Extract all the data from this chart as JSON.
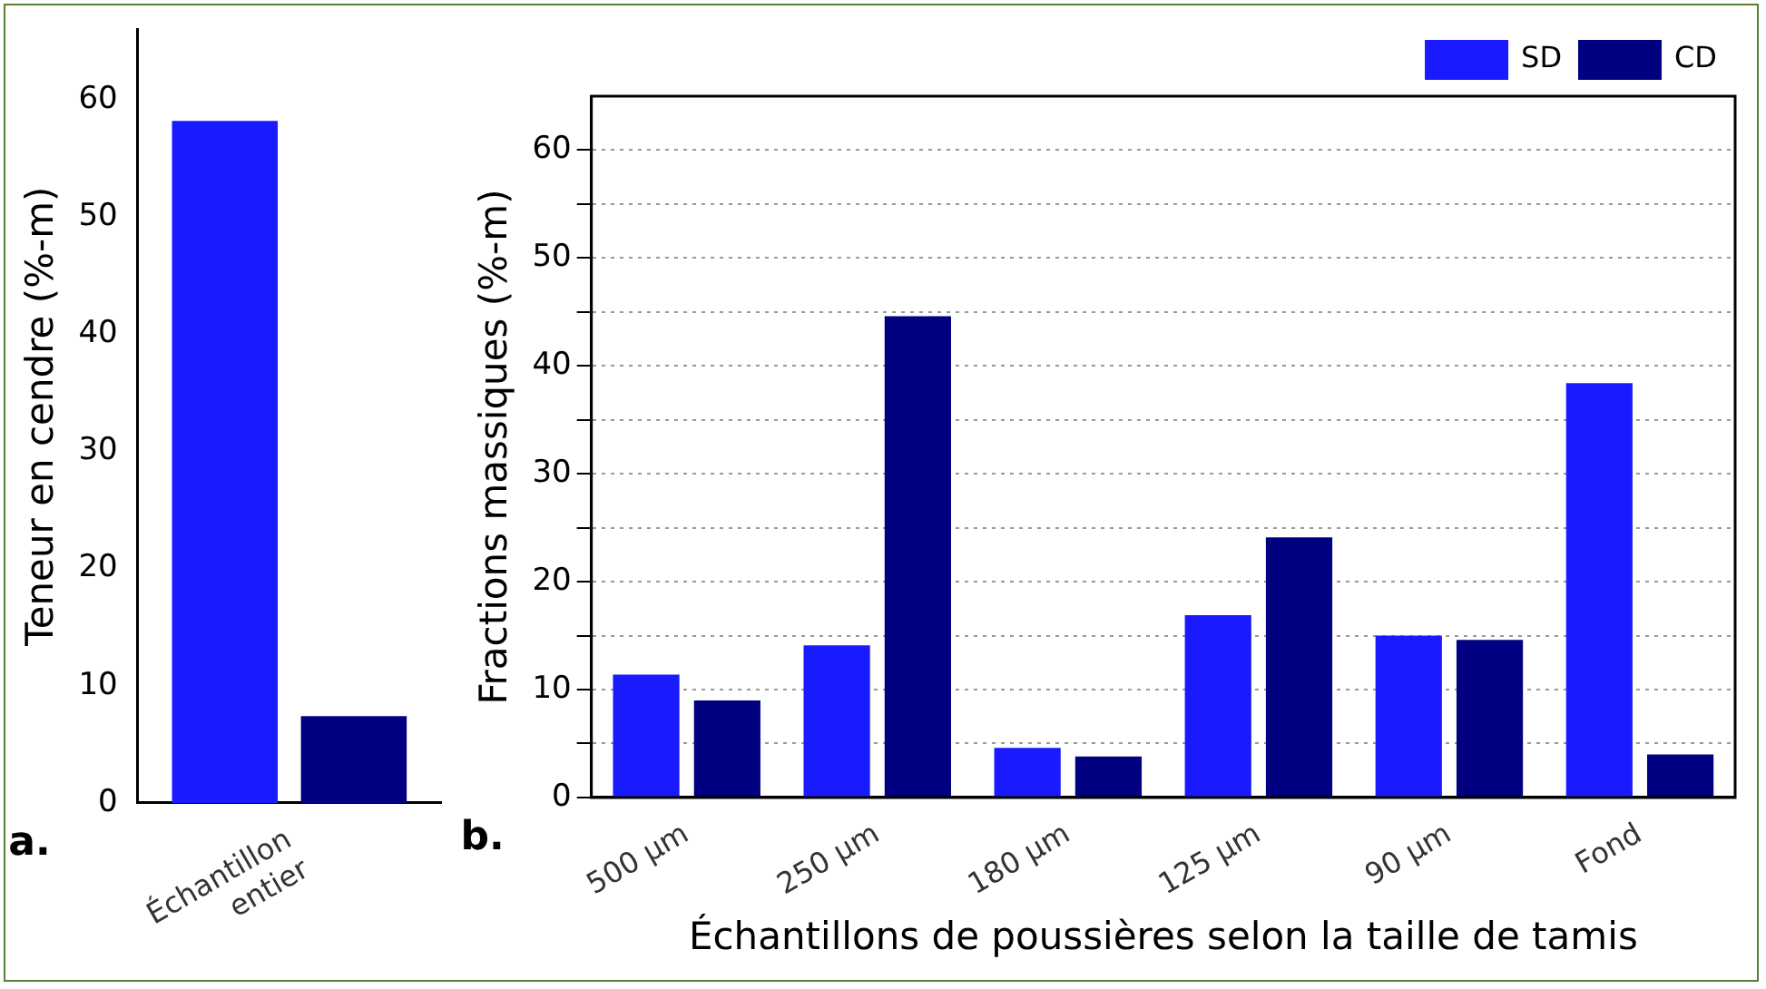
{
  "chart_data": [
    {
      "type": "bar",
      "categories": [
        "Échantillon entier"
      ],
      "ylabel": "Teneur en cendre (%-m)",
      "ylim": [
        0,
        66
      ],
      "yticks": [
        0,
        10,
        20,
        30,
        40,
        50,
        60
      ],
      "series": [
        {
          "color": "#1a1aff",
          "values": [
            58.2
          ]
        },
        {
          "color": "#000080",
          "values": [
            7.4
          ]
        }
      ],
      "annotations": [
        "a."
      ]
    },
    {
      "type": "bar",
      "categories": [
        "500 µm",
        "250 µm",
        "180 µm",
        "125 µm",
        "90 µm",
        "Fond"
      ],
      "xlabel": "Échantillons de poussières selon la taille de tamis",
      "ylabel": "Fractions massiques (%-m)",
      "ylim": [
        0,
        65
      ],
      "yticks": [
        0,
        {
          "value": 5,
          "label": null
        },
        10,
        {
          "value": 15,
          "label": null
        },
        20,
        {
          "value": 25,
          "label": null
        },
        30,
        {
          "value": 35,
          "label": null
        },
        40,
        {
          "value": 45,
          "label": null
        },
        50,
        {
          "value": 55,
          "label": null
        },
        60
      ],
      "grid": "y",
      "legend": "top right",
      "series": [
        {
          "name": "SD",
          "color": "#1a1aff",
          "values": [
            11.4,
            14.1,
            4.6,
            16.9,
            15.0,
            38.4
          ]
        },
        {
          "name": "CD",
          "color": "#000080",
          "values": [
            9.0,
            44.6,
            3.8,
            24.1,
            14.6,
            4.0
          ]
        }
      ],
      "annotations": [
        "b."
      ]
    }
  ]
}
